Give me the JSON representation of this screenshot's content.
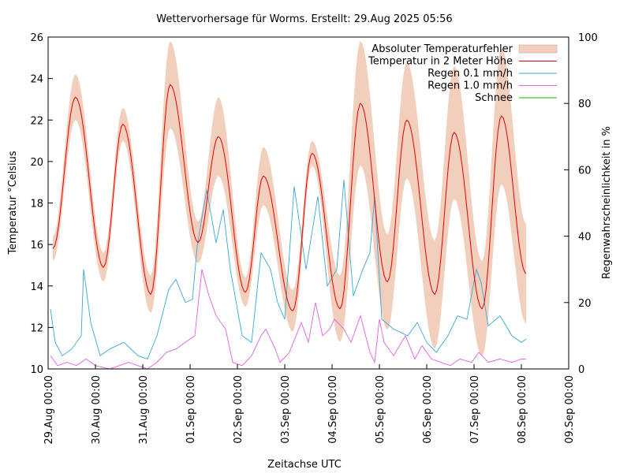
{
  "chart_data": {
    "type": "line",
    "title": "Wettervorhersage für Worms. Erstellt: 29.Aug 2025 05:56",
    "xlabel": "Zeitachse UTC",
    "ylabel_left": "Temperatur °Celsius",
    "ylabel_right": "Regenwahrscheinlichkeit in %",
    "ylim_left": [
      10,
      26
    ],
    "ylim_right": [
      0,
      100
    ],
    "y_ticks_left": [
      "10",
      "12",
      "14",
      "16",
      "18",
      "20",
      "22",
      "24",
      "26"
    ],
    "y_ticks_right": [
      "0",
      "20",
      "40",
      "60",
      "80",
      "100"
    ],
    "x_ticks": [
      "29.Aug 00:00",
      "30.Aug 00:00",
      "31.Aug 00:00",
      "01.Sep 00:00",
      "02.Sep 00:00",
      "03.Sep 00:00",
      "04.Sep 00:00",
      "05.Sep 00:00",
      "06.Sep 00:00",
      "07.Sep 00:00",
      "08.Sep 00:00",
      "09.Sep 00:00"
    ],
    "xlim_days": [
      0,
      11
    ],
    "grid": false,
    "legend_position": "top-right",
    "legend": [
      {
        "key": "band",
        "label": "Absoluter Temperaturfehler",
        "color": "#f2cfbc"
      },
      {
        "key": "temp",
        "label": "Temperatur in 2 Meter Höhe",
        "color": "#e00000"
      },
      {
        "key": "r01",
        "label": "Regen 0.1 mm/h",
        "color": "#3aa6d8"
      },
      {
        "key": "r10",
        "label": "Regen 1.0 mm/h",
        "color": "#e060e0"
      },
      {
        "key": "snow",
        "label": "Schnee",
        "color": "#00c000"
      }
    ],
    "temperature_extrema": [
      {
        "day": 0.1,
        "t": 15.8,
        "err": 0.6
      },
      {
        "day": 0.58,
        "t": 23.1,
        "err": 1.1
      },
      {
        "day": 1.17,
        "t": 14.9,
        "err": 0.7
      },
      {
        "day": 1.58,
        "t": 21.8,
        "err": 0.8
      },
      {
        "day": 2.17,
        "t": 13.6,
        "err": 0.9
      },
      {
        "day": 2.58,
        "t": 23.7,
        "err": 2.1
      },
      {
        "day": 3.17,
        "t": 16.1,
        "err": 1.0
      },
      {
        "day": 3.6,
        "t": 21.2,
        "err": 1.9
      },
      {
        "day": 4.17,
        "t": 13.7,
        "err": 0.7
      },
      {
        "day": 4.55,
        "t": 19.3,
        "err": 1.4
      },
      {
        "day": 5.17,
        "t": 12.8,
        "err": 1.0
      },
      {
        "day": 5.58,
        "t": 20.4,
        "err": 0.6
      },
      {
        "day": 6.17,
        "t": 12.9,
        "err": 1.6
      },
      {
        "day": 6.6,
        "t": 22.8,
        "err": 3.0
      },
      {
        "day": 7.17,
        "t": 14.2,
        "err": 2.3
      },
      {
        "day": 7.58,
        "t": 22.0,
        "err": 2.8
      },
      {
        "day": 8.17,
        "t": 13.6,
        "err": 2.6
      },
      {
        "day": 8.58,
        "t": 21.4,
        "err": 3.2
      },
      {
        "day": 9.17,
        "t": 12.9,
        "err": 2.3
      },
      {
        "day": 9.58,
        "t": 22.2,
        "err": 3.3
      },
      {
        "day": 10.1,
        "t": 14.6,
        "err": 2.4
      }
    ],
    "rain_01_mmh_pct": [
      [
        0.05,
        18
      ],
      [
        0.15,
        8
      ],
      [
        0.3,
        4
      ],
      [
        0.5,
        6
      ],
      [
        0.7,
        10
      ],
      [
        0.75,
        30
      ],
      [
        0.9,
        14
      ],
      [
        1.1,
        4
      ],
      [
        1.3,
        6
      ],
      [
        1.6,
        8
      ],
      [
        1.9,
        4
      ],
      [
        2.1,
        3
      ],
      [
        2.3,
        10
      ],
      [
        2.55,
        24
      ],
      [
        2.7,
        27
      ],
      [
        2.9,
        20
      ],
      [
        3.05,
        21
      ],
      [
        3.15,
        37
      ],
      [
        3.35,
        54
      ],
      [
        3.55,
        38
      ],
      [
        3.7,
        48
      ],
      [
        3.85,
        30
      ],
      [
        4.1,
        10
      ],
      [
        4.3,
        8
      ],
      [
        4.5,
        35
      ],
      [
        4.7,
        30
      ],
      [
        4.85,
        20
      ],
      [
        5.0,
        15
      ],
      [
        5.2,
        55
      ],
      [
        5.45,
        30
      ],
      [
        5.7,
        52
      ],
      [
        5.9,
        25
      ],
      [
        6.1,
        30
      ],
      [
        6.25,
        57
      ],
      [
        6.45,
        22
      ],
      [
        6.65,
        30
      ],
      [
        6.8,
        35
      ],
      [
        6.9,
        52
      ],
      [
        7.05,
        15
      ],
      [
        7.3,
        12
      ],
      [
        7.6,
        10
      ],
      [
        7.8,
        14
      ],
      [
        8.0,
        8
      ],
      [
        8.2,
        5
      ],
      [
        8.45,
        10
      ],
      [
        8.65,
        16
      ],
      [
        8.85,
        15
      ],
      [
        9.05,
        30
      ],
      [
        9.15,
        26
      ],
      [
        9.3,
        13
      ],
      [
        9.55,
        16
      ],
      [
        9.8,
        10
      ],
      [
        10.0,
        8
      ],
      [
        10.1,
        9
      ]
    ],
    "rain_10_mmh_pct": [
      [
        0.05,
        4
      ],
      [
        0.2,
        1
      ],
      [
        0.4,
        2
      ],
      [
        0.6,
        1
      ],
      [
        0.8,
        3
      ],
      [
        1.0,
        1
      ],
      [
        1.3,
        0
      ],
      [
        1.5,
        1
      ],
      [
        1.7,
        2
      ],
      [
        1.9,
        1
      ],
      [
        2.1,
        0
      ],
      [
        2.3,
        2
      ],
      [
        2.5,
        5
      ],
      [
        2.7,
        6
      ],
      [
        2.9,
        8
      ],
      [
        3.1,
        10
      ],
      [
        3.25,
        30
      ],
      [
        3.4,
        22
      ],
      [
        3.55,
        16
      ],
      [
        3.75,
        12
      ],
      [
        3.9,
        2
      ],
      [
        4.1,
        1
      ],
      [
        4.3,
        4
      ],
      [
        4.5,
        10
      ],
      [
        4.6,
        12
      ],
      [
        4.8,
        6
      ],
      [
        4.9,
        2
      ],
      [
        5.1,
        5
      ],
      [
        5.35,
        14
      ],
      [
        5.5,
        8
      ],
      [
        5.65,
        20
      ],
      [
        5.8,
        10
      ],
      [
        5.95,
        12
      ],
      [
        6.05,
        15
      ],
      [
        6.25,
        12
      ],
      [
        6.4,
        8
      ],
      [
        6.6,
        16
      ],
      [
        6.8,
        5
      ],
      [
        6.9,
        2
      ],
      [
        7.0,
        15
      ],
      [
        7.1,
        8
      ],
      [
        7.3,
        4
      ],
      [
        7.55,
        10
      ],
      [
        7.75,
        3
      ],
      [
        7.9,
        7
      ],
      [
        8.0,
        5
      ],
      [
        8.1,
        3
      ],
      [
        8.3,
        2
      ],
      [
        8.5,
        1
      ],
      [
        8.7,
        3
      ],
      [
        8.95,
        2
      ],
      [
        9.1,
        5
      ],
      [
        9.3,
        2
      ],
      [
        9.55,
        3
      ],
      [
        9.8,
        2
      ],
      [
        10.0,
        3
      ],
      [
        10.1,
        3
      ]
    ],
    "snow_pct": []
  }
}
